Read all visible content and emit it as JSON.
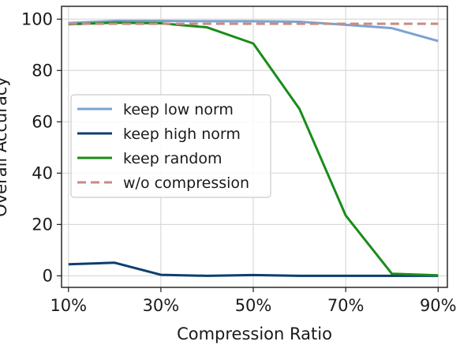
{
  "chart_data": {
    "type": "line",
    "xlabel": "Compression Ratio",
    "ylabel": "Overall Accuracy",
    "x": [
      "10%",
      "20%",
      "30%",
      "40%",
      "50%",
      "60%",
      "70%",
      "80%",
      "90%"
    ],
    "x_ticks": [
      "10%",
      "30%",
      "50%",
      "70%",
      "90%"
    ],
    "y_ticks": [
      "0",
      "20",
      "40",
      "60",
      "80",
      "100"
    ],
    "xlim": [
      8.5,
      92
    ],
    "ylim": [
      -4.5,
      105
    ],
    "grid": true,
    "legend_position": "center-left",
    "series": [
      {
        "name": "keep low norm",
        "color": "#7ba3d0",
        "dash": false,
        "values": [
          98.5,
          99.3,
          99.3,
          99.2,
          99.2,
          99.0,
          97.8,
          96.5,
          91.5
        ]
      },
      {
        "name": "keep high norm",
        "color": "#0d3e6e",
        "dash": false,
        "values": [
          4.5,
          5.1,
          0.4,
          0.0,
          0.3,
          0.0,
          0.0,
          0.0,
          0.0
        ]
      },
      {
        "name": "keep random",
        "color": "#1a8c1a",
        "dash": false,
        "values": [
          98.0,
          98.6,
          98.4,
          96.8,
          90.5,
          65.0,
          23.5,
          0.8,
          0.2
        ]
      },
      {
        "name": "w/o compression",
        "color": "#c98a83",
        "dash": true,
        "values": [
          98.2,
          98.2,
          98.2,
          98.2,
          98.2,
          98.2,
          98.2,
          98.2,
          98.2
        ]
      }
    ]
  }
}
